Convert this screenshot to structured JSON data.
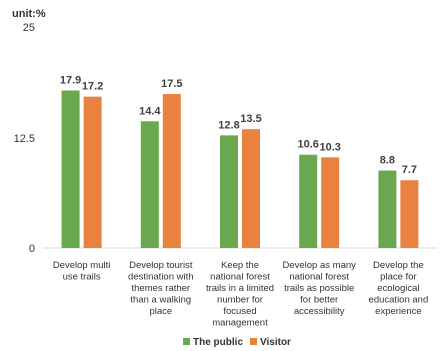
{
  "unit_label": "unit:%",
  "legend": {
    "public": "The public",
    "visitor": "Visitor"
  },
  "colors": {
    "public": "#6aa84f",
    "visitor": "#e8823e",
    "axis": "#d9d9d9"
  },
  "chart_data": {
    "type": "bar",
    "title": "",
    "xlabel": "",
    "ylabel": "unit:%",
    "ylim": [
      0,
      25
    ],
    "yticks": [
      "0",
      "12.5",
      "25"
    ],
    "grid": false,
    "legend_position": "bottom",
    "categories": [
      "Develop multi use trails",
      "Develop tourist destination with themes rather than a walking place",
      "Keep the national forest trails in a limited number for focused management",
      "Develop as many national forest trails as possible for better accessibility",
      "Develop the place for ecological education and experience"
    ],
    "series": [
      {
        "name": "The public",
        "values": [
          17.9,
          14.4,
          12.8,
          10.6,
          8.8
        ]
      },
      {
        "name": "Visitor",
        "values": [
          17.2,
          17.5,
          13.5,
          10.3,
          7.7
        ]
      }
    ]
  }
}
